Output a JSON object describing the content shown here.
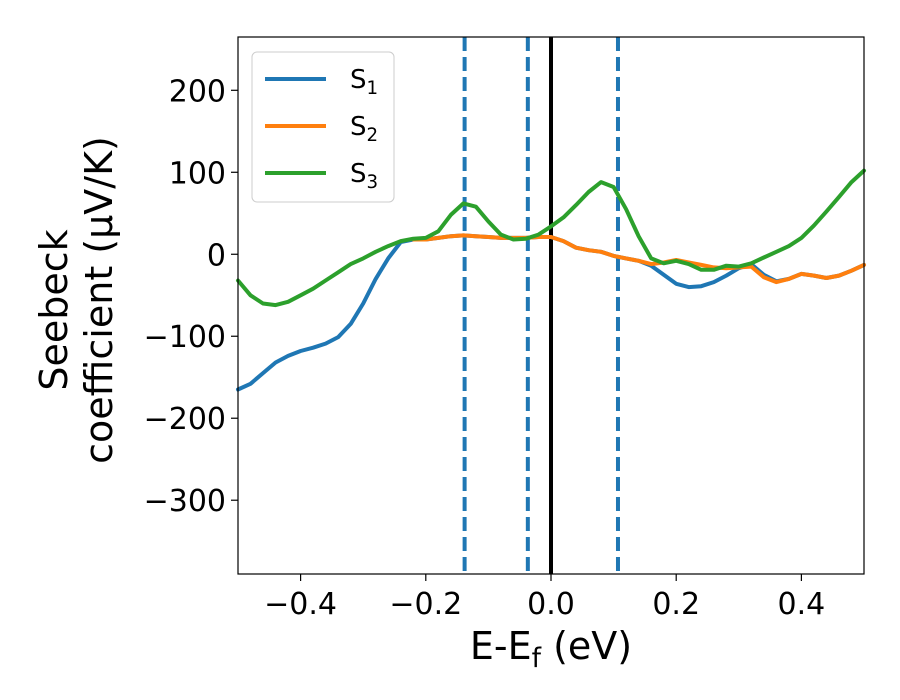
{
  "chart_data": {
    "type": "line",
    "title": "",
    "xlabel": {
      "main": "E-E",
      "sub": "f",
      "unit": " (eV)"
    },
    "ylabel": {
      "line1": "Seebeck",
      "line2": "coefficient  (μV/K)"
    },
    "xlim": [
      -0.5,
      0.5
    ],
    "ylim": [
      -390,
      265
    ],
    "xticks": [
      {
        "value": -0.4,
        "label": "−0.4"
      },
      {
        "value": -0.2,
        "label": "−0.2"
      },
      {
        "value": 0.0,
        "label": "0.0"
      },
      {
        "value": 0.2,
        "label": "0.2"
      },
      {
        "value": 0.4,
        "label": "0.4"
      }
    ],
    "yticks": [
      {
        "value": 200,
        "label": "200"
      },
      {
        "value": 100,
        "label": "100"
      },
      {
        "value": 0,
        "label": "0"
      },
      {
        "value": -100,
        "label": "−100"
      },
      {
        "value": -200,
        "label": "−200"
      },
      {
        "value": -300,
        "label": "−300"
      }
    ],
    "grid": false,
    "legend_position": "top-left",
    "vertical_lines": [
      {
        "x": -0.138,
        "style": "dashed",
        "color": "#1f77b4"
      },
      {
        "x": -0.037,
        "style": "dashed",
        "color": "#1f77b4"
      },
      {
        "x": 0.0,
        "style": "solid",
        "color": "#000000"
      },
      {
        "x": 0.107,
        "style": "dashed",
        "color": "#1f77b4"
      }
    ],
    "series": [
      {
        "name": "S",
        "sub": "1",
        "color": "#1f77b4",
        "points": [
          [
            -0.5,
            -165
          ],
          [
            -0.48,
            -158
          ],
          [
            -0.46,
            -145
          ],
          [
            -0.44,
            -132
          ],
          [
            -0.42,
            -124
          ],
          [
            -0.4,
            -118
          ],
          [
            -0.38,
            -114
          ],
          [
            -0.36,
            -109
          ],
          [
            -0.34,
            -101
          ],
          [
            -0.32,
            -85
          ],
          [
            -0.3,
            -60
          ],
          [
            -0.28,
            -30
          ],
          [
            -0.26,
            -5
          ],
          [
            -0.24,
            15
          ],
          [
            -0.22,
            18
          ],
          [
            -0.2,
            18
          ],
          [
            -0.18,
            20
          ],
          [
            -0.16,
            22
          ],
          [
            -0.14,
            23
          ],
          [
            -0.12,
            22
          ],
          [
            -0.1,
            21
          ],
          [
            -0.08,
            20
          ],
          [
            -0.06,
            20
          ],
          [
            -0.04,
            20
          ],
          [
            -0.02,
            21
          ],
          [
            0.0,
            21
          ],
          [
            0.02,
            16
          ],
          [
            0.04,
            8
          ],
          [
            0.06,
            5
          ],
          [
            0.08,
            3
          ],
          [
            0.1,
            -2
          ],
          [
            0.12,
            -5
          ],
          [
            0.14,
            -8
          ],
          [
            0.16,
            -14
          ],
          [
            0.18,
            -25
          ],
          [
            0.2,
            -36
          ],
          [
            0.22,
            -40
          ],
          [
            0.24,
            -39
          ],
          [
            0.26,
            -34
          ],
          [
            0.28,
            -26
          ],
          [
            0.3,
            -17
          ],
          [
            0.32,
            -12
          ],
          [
            0.34,
            -25
          ],
          [
            0.36,
            -33
          ],
          [
            0.38,
            -30
          ],
          [
            0.4,
            -24
          ],
          [
            0.42,
            -26
          ],
          [
            0.44,
            -29
          ],
          [
            0.46,
            -26
          ],
          [
            0.48,
            -20
          ],
          [
            0.5,
            -13
          ]
        ]
      },
      {
        "name": "S",
        "sub": "2",
        "color": "#ff7f0e",
        "points": [
          [
            -0.22,
            18
          ],
          [
            -0.2,
            18
          ],
          [
            -0.18,
            20
          ],
          [
            -0.16,
            22
          ],
          [
            -0.14,
            23
          ],
          [
            -0.12,
            22
          ],
          [
            -0.1,
            21
          ],
          [
            -0.08,
            20
          ],
          [
            -0.06,
            20
          ],
          [
            -0.04,
            20
          ],
          [
            -0.02,
            21
          ],
          [
            0.0,
            21
          ],
          [
            0.02,
            16
          ],
          [
            0.04,
            8
          ],
          [
            0.06,
            5
          ],
          [
            0.08,
            3
          ],
          [
            0.1,
            -2
          ],
          [
            0.12,
            -5
          ],
          [
            0.14,
            -8
          ],
          [
            0.16,
            -12
          ],
          [
            0.18,
            -10
          ],
          [
            0.2,
            -7
          ],
          [
            0.22,
            -10
          ],
          [
            0.24,
            -13
          ],
          [
            0.26,
            -16
          ],
          [
            0.28,
            -17
          ],
          [
            0.3,
            -16
          ],
          [
            0.32,
            -15
          ],
          [
            0.34,
            -28
          ],
          [
            0.36,
            -34
          ],
          [
            0.38,
            -30
          ],
          [
            0.4,
            -24
          ],
          [
            0.42,
            -26
          ],
          [
            0.44,
            -29
          ],
          [
            0.46,
            -26
          ],
          [
            0.48,
            -20
          ],
          [
            0.5,
            -13
          ]
        ]
      },
      {
        "name": "S",
        "sub": "3",
        "color": "#2ca02c",
        "points": [
          [
            -0.5,
            -32
          ],
          [
            -0.48,
            -50
          ],
          [
            -0.46,
            -60
          ],
          [
            -0.44,
            -62
          ],
          [
            -0.42,
            -58
          ],
          [
            -0.4,
            -50
          ],
          [
            -0.38,
            -42
          ],
          [
            -0.36,
            -32
          ],
          [
            -0.34,
            -22
          ],
          [
            -0.32,
            -12
          ],
          [
            -0.3,
            -5
          ],
          [
            -0.28,
            3
          ],
          [
            -0.26,
            10
          ],
          [
            -0.24,
            16
          ],
          [
            -0.22,
            19
          ],
          [
            -0.2,
            20
          ],
          [
            -0.18,
            28
          ],
          [
            -0.16,
            48
          ],
          [
            -0.14,
            62
          ],
          [
            -0.12,
            58
          ],
          [
            -0.1,
            40
          ],
          [
            -0.08,
            24
          ],
          [
            -0.06,
            18
          ],
          [
            -0.04,
            19
          ],
          [
            -0.02,
            24
          ],
          [
            0.0,
            34
          ],
          [
            0.02,
            45
          ],
          [
            0.04,
            60
          ],
          [
            0.06,
            76
          ],
          [
            0.08,
            88
          ],
          [
            0.1,
            82
          ],
          [
            0.12,
            55
          ],
          [
            0.14,
            22
          ],
          [
            0.16,
            -5
          ],
          [
            0.18,
            -11
          ],
          [
            0.2,
            -8
          ],
          [
            0.22,
            -12
          ],
          [
            0.24,
            -19
          ],
          [
            0.26,
            -19
          ],
          [
            0.28,
            -14
          ],
          [
            0.3,
            -15
          ],
          [
            0.32,
            -11
          ],
          [
            0.34,
            -4
          ],
          [
            0.36,
            3
          ],
          [
            0.38,
            10
          ],
          [
            0.4,
            20
          ],
          [
            0.42,
            35
          ],
          [
            0.44,
            52
          ],
          [
            0.46,
            70
          ],
          [
            0.48,
            88
          ],
          [
            0.5,
            102
          ]
        ]
      }
    ]
  }
}
